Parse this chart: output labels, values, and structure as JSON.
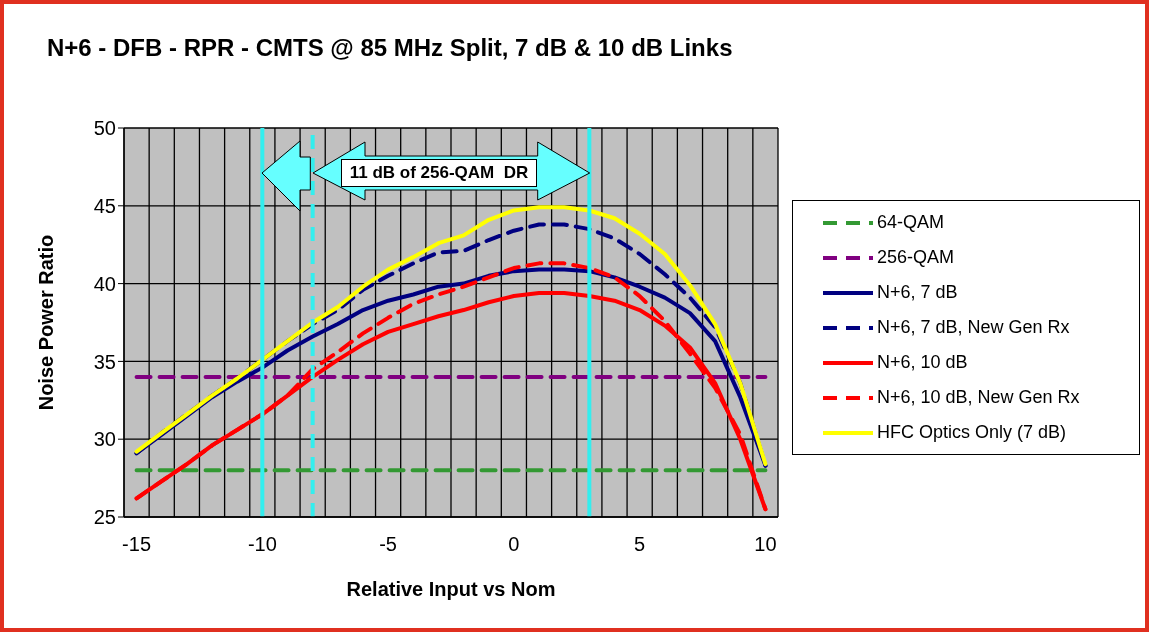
{
  "chart_data": {
    "type": "line",
    "title": "N+6 - DFB - RPR - CMTS @ 85 MHz Split, 7 dB & 10 dB Links",
    "xlabel": "Relative Input vs Nom",
    "ylabel": "Noise Power Ratio",
    "x": [
      -15,
      -14,
      -13,
      -12,
      -11,
      -10,
      -9,
      -8,
      -7,
      -6,
      -5,
      -4,
      -3,
      -2,
      -1,
      0,
      1,
      2,
      3,
      4,
      5,
      6,
      7,
      8,
      9,
      10
    ],
    "xlim": [
      -15.5,
      10.5
    ],
    "xticks": [
      {
        "value": -15.5,
        "label": null
      },
      -15,
      {
        "value": -14.5,
        "label": null
      },
      {
        "value": -13.5,
        "label": null
      },
      {
        "value": -12.5,
        "label": null
      },
      {
        "value": -11.5,
        "label": null
      },
      {
        "value": -10.5,
        "label": null
      },
      -10,
      {
        "value": -9.5,
        "label": null
      },
      {
        "value": -8.5,
        "label": null
      },
      {
        "value": -7.5,
        "label": null
      },
      {
        "value": -6.5,
        "label": null
      },
      {
        "value": -5.5,
        "label": null
      },
      -5,
      {
        "value": -4.5,
        "label": null
      },
      {
        "value": -3.5,
        "label": null
      },
      {
        "value": -2.5,
        "label": null
      },
      {
        "value": -1.5,
        "label": null
      },
      {
        "value": -0.5,
        "label": null
      },
      0,
      {
        "value": 0.5,
        "label": null
      },
      {
        "value": 1.5,
        "label": null
      },
      {
        "value": 2.5,
        "label": null
      },
      {
        "value": 3.5,
        "label": null
      },
      {
        "value": 4.5,
        "label": null
      },
      5,
      {
        "value": 5.5,
        "label": null
      },
      {
        "value": 6.5,
        "label": null
      },
      {
        "value": 7.5,
        "label": null
      },
      {
        "value": 8.5,
        "label": null
      },
      {
        "value": 9.5,
        "label": null
      },
      10,
      {
        "value": 10.5,
        "label": null
      }
    ],
    "ylim": [
      25,
      50
    ],
    "yticks": [
      25,
      30,
      35,
      40,
      45,
      50
    ],
    "grid": true,
    "legend": "right",
    "marker": "none",
    "series": [
      {
        "name": "64-QAM",
        "color": "#339933",
        "line_style": "dashed",
        "values": [
          28,
          28,
          28,
          28,
          28,
          28,
          28,
          28,
          28,
          28,
          28,
          28,
          28,
          28,
          28,
          28,
          28,
          28,
          28,
          28,
          28,
          28,
          28,
          28,
          28,
          28
        ]
      },
      {
        "name": "256-QAM",
        "color": "#800080",
        "line_style": "dashed",
        "values": [
          34,
          34,
          34,
          34,
          34,
          34,
          34,
          34,
          34,
          34,
          34,
          34,
          34,
          34,
          34,
          34,
          34,
          34,
          34,
          34,
          34,
          34,
          34,
          34,
          34,
          34
        ]
      },
      {
        "name": "N+6, 7 dB",
        "color": "#000080",
        "line_style": "solid",
        "values": [
          29.1,
          30.3,
          31.5,
          32.7,
          33.7,
          34.6,
          35.7,
          36.6,
          37.4,
          38.3,
          38.9,
          39.3,
          39.8,
          40.0,
          40.5,
          40.8,
          40.9,
          40.9,
          40.8,
          40.4,
          39.8,
          39.1,
          38.1,
          36.3,
          32.7,
          28.3
        ]
      },
      {
        "name": "N+6, 7 dB, New Gen Rx",
        "color": "#000080",
        "line_style": "dashed",
        "values": [
          29.1,
          30.4,
          31.6,
          32.8,
          33.9,
          35.1,
          36.3,
          37.4,
          38.3,
          39.6,
          40.5,
          41.3,
          42.0,
          42.1,
          42.8,
          43.4,
          43.8,
          43.8,
          43.5,
          42.9,
          41.9,
          40.6,
          39.1,
          37.2,
          33.6,
          28.3
        ]
      },
      {
        "name": "N+6, 10 dB",
        "color": "#ff0000",
        "line_style": "solid",
        "values": [
          26.2,
          27.3,
          28.4,
          29.6,
          30.6,
          31.6,
          32.8,
          34.0,
          35.1,
          36.1,
          36.9,
          37.4,
          37.9,
          38.3,
          38.8,
          39.2,
          39.4,
          39.4,
          39.2,
          38.9,
          38.3,
          37.3,
          35.9,
          33.6,
          30.0,
          25.5
        ]
      },
      {
        "name": "N+6, 10 dB, New Gen Rx",
        "color": "#ff0000",
        "line_style": "dashed",
        "values": [
          26.2,
          27.3,
          28.4,
          29.6,
          30.6,
          31.6,
          32.8,
          34.5,
          35.6,
          36.8,
          37.8,
          38.7,
          39.3,
          39.8,
          40.4,
          41.0,
          41.3,
          41.3,
          41.0,
          40.4,
          39.2,
          37.6,
          35.5,
          33.3,
          30.3,
          25.5
        ]
      },
      {
        "name": "HFC Optics Only (7 dB)",
        "color": "#ffff00",
        "line_style": "solid",
        "values": [
          29.2,
          30.4,
          31.6,
          32.8,
          33.9,
          35.1,
          36.3,
          37.5,
          38.5,
          39.8,
          40.9,
          41.7,
          42.6,
          43.1,
          44.1,
          44.7,
          44.9,
          44.9,
          44.7,
          44.2,
          43.2,
          41.9,
          39.9,
          37.4,
          33.6,
          28.4
        ]
      }
    ],
    "ref_lines": [
      {
        "axis": "x",
        "value": -10,
        "color": "#33eeee",
        "line_style": "solid"
      },
      {
        "axis": "x",
        "value": -8,
        "color": "#33eeee",
        "line_style": "dashed"
      },
      {
        "axis": "x",
        "value": 3,
        "color": "#33eeee",
        "line_style": "solid"
      }
    ],
    "annotations": [
      "11 dB of 256-QAM  DR"
    ]
  }
}
